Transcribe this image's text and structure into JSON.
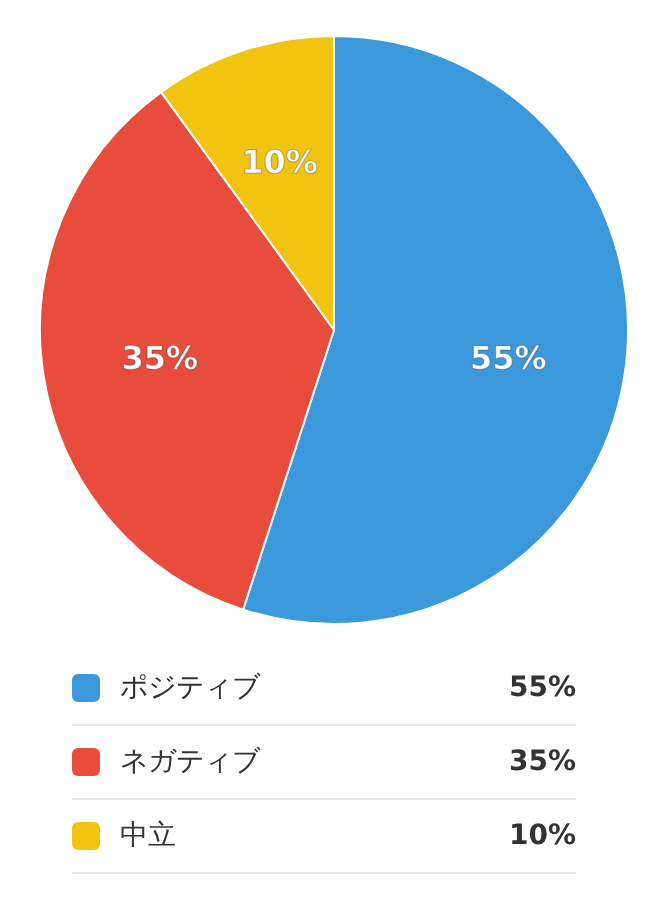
{
  "chart_data": {
    "type": "pie",
    "categories": [
      "ポジティブ",
      "ネガティブ",
      "中立"
    ],
    "values": [
      55,
      35,
      10
    ],
    "value_labels": [
      "55%",
      "35%",
      "10%"
    ],
    "colors": [
      "#3a98db",
      "#e74c3c",
      "#f1c40f"
    ],
    "legend": "bottom"
  }
}
